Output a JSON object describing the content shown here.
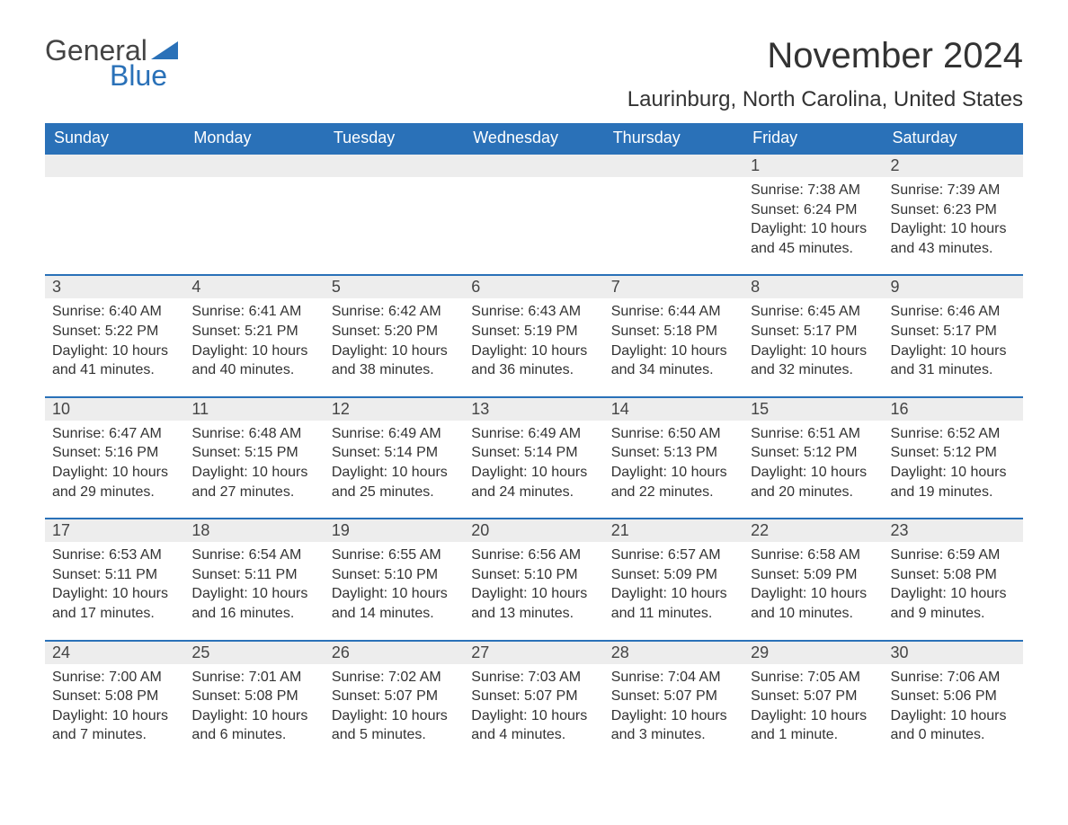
{
  "logo": {
    "word1": "General",
    "word2": "Blue"
  },
  "title": "November 2024",
  "location": "Laurinburg, North Carolina, United States",
  "colors": {
    "header_bg": "#2a71b8",
    "header_text": "#ffffff",
    "daynum_bg": "#ededed",
    "border": "#2a71b8",
    "text": "#333333",
    "page_bg": "#ffffff"
  },
  "fonts": {
    "title_size": 40,
    "location_size": 24,
    "header_size": 18,
    "body_size": 16
  },
  "weekdays": [
    "Sunday",
    "Monday",
    "Tuesday",
    "Wednesday",
    "Thursday",
    "Friday",
    "Saturday"
  ],
  "leading_blanks": 5,
  "days": [
    {
      "n": 1,
      "sunrise": "7:38 AM",
      "sunset": "6:24 PM",
      "daylight": "10 hours and 45 minutes."
    },
    {
      "n": 2,
      "sunrise": "7:39 AM",
      "sunset": "6:23 PM",
      "daylight": "10 hours and 43 minutes."
    },
    {
      "n": 3,
      "sunrise": "6:40 AM",
      "sunset": "5:22 PM",
      "daylight": "10 hours and 41 minutes."
    },
    {
      "n": 4,
      "sunrise": "6:41 AM",
      "sunset": "5:21 PM",
      "daylight": "10 hours and 40 minutes."
    },
    {
      "n": 5,
      "sunrise": "6:42 AM",
      "sunset": "5:20 PM",
      "daylight": "10 hours and 38 minutes."
    },
    {
      "n": 6,
      "sunrise": "6:43 AM",
      "sunset": "5:19 PM",
      "daylight": "10 hours and 36 minutes."
    },
    {
      "n": 7,
      "sunrise": "6:44 AM",
      "sunset": "5:18 PM",
      "daylight": "10 hours and 34 minutes."
    },
    {
      "n": 8,
      "sunrise": "6:45 AM",
      "sunset": "5:17 PM",
      "daylight": "10 hours and 32 minutes."
    },
    {
      "n": 9,
      "sunrise": "6:46 AM",
      "sunset": "5:17 PM",
      "daylight": "10 hours and 31 minutes."
    },
    {
      "n": 10,
      "sunrise": "6:47 AM",
      "sunset": "5:16 PM",
      "daylight": "10 hours and 29 minutes."
    },
    {
      "n": 11,
      "sunrise": "6:48 AM",
      "sunset": "5:15 PM",
      "daylight": "10 hours and 27 minutes."
    },
    {
      "n": 12,
      "sunrise": "6:49 AM",
      "sunset": "5:14 PM",
      "daylight": "10 hours and 25 minutes."
    },
    {
      "n": 13,
      "sunrise": "6:49 AM",
      "sunset": "5:14 PM",
      "daylight": "10 hours and 24 minutes."
    },
    {
      "n": 14,
      "sunrise": "6:50 AM",
      "sunset": "5:13 PM",
      "daylight": "10 hours and 22 minutes."
    },
    {
      "n": 15,
      "sunrise": "6:51 AM",
      "sunset": "5:12 PM",
      "daylight": "10 hours and 20 minutes."
    },
    {
      "n": 16,
      "sunrise": "6:52 AM",
      "sunset": "5:12 PM",
      "daylight": "10 hours and 19 minutes."
    },
    {
      "n": 17,
      "sunrise": "6:53 AM",
      "sunset": "5:11 PM",
      "daylight": "10 hours and 17 minutes."
    },
    {
      "n": 18,
      "sunrise": "6:54 AM",
      "sunset": "5:11 PM",
      "daylight": "10 hours and 16 minutes."
    },
    {
      "n": 19,
      "sunrise": "6:55 AM",
      "sunset": "5:10 PM",
      "daylight": "10 hours and 14 minutes."
    },
    {
      "n": 20,
      "sunrise": "6:56 AM",
      "sunset": "5:10 PM",
      "daylight": "10 hours and 13 minutes."
    },
    {
      "n": 21,
      "sunrise": "6:57 AM",
      "sunset": "5:09 PM",
      "daylight": "10 hours and 11 minutes."
    },
    {
      "n": 22,
      "sunrise": "6:58 AM",
      "sunset": "5:09 PM",
      "daylight": "10 hours and 10 minutes."
    },
    {
      "n": 23,
      "sunrise": "6:59 AM",
      "sunset": "5:08 PM",
      "daylight": "10 hours and 9 minutes."
    },
    {
      "n": 24,
      "sunrise": "7:00 AM",
      "sunset": "5:08 PM",
      "daylight": "10 hours and 7 minutes."
    },
    {
      "n": 25,
      "sunrise": "7:01 AM",
      "sunset": "5:08 PM",
      "daylight": "10 hours and 6 minutes."
    },
    {
      "n": 26,
      "sunrise": "7:02 AM",
      "sunset": "5:07 PM",
      "daylight": "10 hours and 5 minutes."
    },
    {
      "n": 27,
      "sunrise": "7:03 AM",
      "sunset": "5:07 PM",
      "daylight": "10 hours and 4 minutes."
    },
    {
      "n": 28,
      "sunrise": "7:04 AM",
      "sunset": "5:07 PM",
      "daylight": "10 hours and 3 minutes."
    },
    {
      "n": 29,
      "sunrise": "7:05 AM",
      "sunset": "5:07 PM",
      "daylight": "10 hours and 1 minute."
    },
    {
      "n": 30,
      "sunrise": "7:06 AM",
      "sunset": "5:06 PM",
      "daylight": "10 hours and 0 minutes."
    }
  ],
  "labels": {
    "sunrise": "Sunrise:",
    "sunset": "Sunset:",
    "daylight": "Daylight:"
  }
}
